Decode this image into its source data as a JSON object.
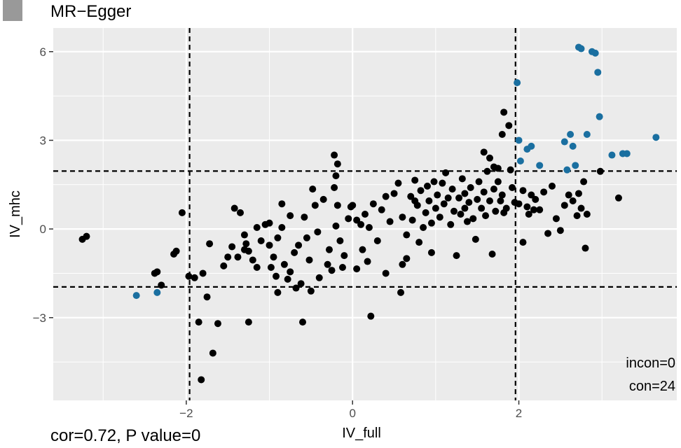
{
  "header": {
    "title": "MR−Egger",
    "legend_key_color": "#999999"
  },
  "footer": {
    "note": "cor=0.72, P value=0"
  },
  "colors": {
    "panel": "#ebebeb",
    "grid": "#ffffff",
    "point_default": "#000000",
    "point_highlight": "#1a6fa0",
    "threshold_line": "#000000"
  },
  "chart_data": {
    "type": "scatter",
    "title": "MR−Egger",
    "xlabel": "IV_full",
    "ylabel": "IV_mhc",
    "xlim": [
      -3.6,
      3.9
    ],
    "ylim": [
      -5.8,
      6.8
    ],
    "x_ticks": [
      {
        "v": -2,
        "label": "−2"
      },
      {
        "v": 0,
        "label": "0"
      },
      {
        "v": 2,
        "label": "2"
      }
    ],
    "y_ticks": [
      {
        "v": -3,
        "label": "−3"
      },
      {
        "v": 0,
        "label": "0"
      },
      {
        "v": 3,
        "label": "3"
      },
      {
        "v": 6,
        "label": "6"
      }
    ],
    "grid": true,
    "thresholds": {
      "x": [
        -1.96,
        1.96
      ],
      "y": [
        -1.96,
        1.96
      ]
    },
    "annotations": {
      "incon": "incon=0",
      "con": "con=24"
    },
    "series": [
      {
        "color": "#000000",
        "points": [
          [
            -3.2,
            -0.25
          ],
          [
            -3.25,
            -0.35
          ],
          [
            -2.35,
            -1.45
          ],
          [
            -2.38,
            -1.5
          ],
          [
            -2.3,
            -1.9
          ],
          [
            -2.15,
            -0.85
          ],
          [
            -2.12,
            -0.75
          ],
          [
            -2.05,
            0.55
          ],
          [
            -1.97,
            -1.6
          ],
          [
            -1.9,
            -1.65
          ],
          [
            -1.8,
            -1.5
          ],
          [
            -1.72,
            -0.5
          ],
          [
            -1.75,
            -2.3
          ],
          [
            -1.68,
            -4.2
          ],
          [
            -1.82,
            -5.1
          ],
          [
            -1.85,
            -3.15
          ],
          [
            -1.62,
            -3.2
          ],
          [
            -1.55,
            -1.25
          ],
          [
            -1.5,
            -0.95
          ],
          [
            -1.45,
            -0.6
          ],
          [
            -1.42,
            0.7
          ],
          [
            -1.35,
            0.55
          ],
          [
            -1.3,
            -0.2
          ],
          [
            -1.28,
            -0.5
          ],
          [
            -1.25,
            -0.75
          ],
          [
            -1.2,
            -1.05
          ],
          [
            -1.15,
            -1.3
          ],
          [
            -1.1,
            -0.4
          ],
          [
            -1.05,
            0.15
          ],
          [
            -1.0,
            -0.55
          ],
          [
            -0.98,
            -1.3
          ],
          [
            -0.95,
            -0.95
          ],
          [
            -0.92,
            -1.6
          ],
          [
            -0.9,
            -0.3
          ],
          [
            -0.85,
            0.05
          ],
          [
            -0.82,
            -1.2
          ],
          [
            -0.78,
            -1.7
          ],
          [
            -0.75,
            -1.45
          ],
          [
            -0.7,
            -0.8
          ],
          [
            -0.68,
            -2.0
          ],
          [
            -0.65,
            -0.55
          ],
          [
            -0.62,
            -1.85
          ],
          [
            -0.58,
            0.4
          ],
          [
            -0.55,
            -0.3
          ],
          [
            -0.52,
            -1.05
          ],
          [
            -0.5,
            -2.1
          ],
          [
            -0.48,
            1.35
          ],
          [
            -0.45,
            0.8
          ],
          [
            -0.42,
            -0.1
          ],
          [
            -0.4,
            -1.65
          ],
          [
            -0.35,
            1.0
          ],
          [
            -0.6,
            -3.15
          ],
          [
            -0.3,
            -1.2
          ],
          [
            -0.28,
            -0.7
          ],
          [
            -0.25,
            -1.4
          ],
          [
            -0.2,
            0.1
          ],
          [
            -0.18,
            0.8
          ],
          [
            -0.15,
            -0.4
          ],
          [
            -0.12,
            -1.3
          ],
          [
            -0.1,
            -0.9
          ],
          [
            -0.05,
            0.35
          ],
          [
            -0.02,
            0.75
          ],
          [
            0.05,
            -1.35
          ],
          [
            -0.18,
            2.2
          ],
          [
            -0.22,
            2.5
          ],
          [
            -0.2,
            1.8
          ],
          [
            -0.22,
            1.4
          ],
          [
            0.0,
            0.8
          ],
          [
            0.05,
            0.3
          ],
          [
            0.1,
            0.15
          ],
          [
            0.12,
            -0.7
          ],
          [
            0.15,
            0.5
          ],
          [
            0.18,
            -1.1
          ],
          [
            0.2,
            0.05
          ],
          [
            0.25,
            0.85
          ],
          [
            0.3,
            -0.4
          ],
          [
            0.35,
            0.65
          ],
          [
            0.22,
            -2.95
          ],
          [
            0.4,
            -1.5
          ],
          [
            0.45,
            0.25
          ],
          [
            0.5,
            1.2
          ],
          [
            0.55,
            1.55
          ],
          [
            0.6,
            0.4
          ],
          [
            0.65,
            -0.2
          ],
          [
            0.7,
            1.1
          ],
          [
            0.72,
            0.3
          ],
          [
            0.75,
            1.65
          ],
          [
            0.78,
            0.8
          ],
          [
            0.8,
            -0.45
          ],
          [
            0.82,
            1.3
          ],
          [
            0.85,
            0.05
          ],
          [
            0.88,
            0.55
          ],
          [
            0.9,
            1.45
          ],
          [
            0.92,
            0.95
          ],
          [
            0.95,
            0.2
          ],
          [
            0.98,
            1.6
          ],
          [
            1.0,
            0.7
          ],
          [
            1.02,
            1.15
          ],
          [
            1.05,
            0.4
          ],
          [
            1.08,
            1.55
          ],
          [
            1.1,
            0.85
          ],
          [
            1.12,
            1.9
          ],
          [
            1.15,
            1.05
          ],
          [
            1.18,
            0.15
          ],
          [
            1.2,
            1.35
          ],
          [
            1.22,
            0.6
          ],
          [
            1.25,
            -0.9
          ],
          [
            1.28,
            1.05
          ],
          [
            1.3,
            0.5
          ],
          [
            1.32,
            1.7
          ],
          [
            1.35,
            1.2
          ],
          [
            1.38,
            0.25
          ],
          [
            1.4,
            0.9
          ],
          [
            1.42,
            1.4
          ],
          [
            1.45,
            0.35
          ],
          [
            1.48,
            -0.35
          ],
          [
            1.5,
            1.0
          ],
          [
            1.52,
            1.6
          ],
          [
            1.55,
            0.7
          ],
          [
            1.58,
            1.25
          ],
          [
            1.6,
            0.45
          ],
          [
            1.62,
            1.95
          ],
          [
            1.65,
            0.95
          ],
          [
            1.68,
            -0.85
          ],
          [
            1.7,
            1.35
          ],
          [
            1.72,
            0.6
          ],
          [
            1.75,
            1.6
          ],
          [
            1.78,
            0.95
          ],
          [
            1.8,
            1.15
          ],
          [
            1.82,
            0.55
          ],
          [
            1.85,
            0.7
          ],
          [
            1.58,
            2.6
          ],
          [
            1.65,
            2.4
          ],
          [
            1.7,
            2.1
          ],
          [
            1.75,
            2.05
          ],
          [
            1.8,
            3.2
          ],
          [
            1.82,
            3.95
          ],
          [
            1.88,
            3.5
          ],
          [
            1.9,
            2.0
          ],
          [
            1.92,
            1.4
          ],
          [
            1.95,
            0.9
          ],
          [
            0.95,
            -0.8
          ],
          [
            0.65,
            -1.0
          ],
          [
            0.6,
            -1.2
          ],
          [
            0.58,
            -2.15
          ],
          [
            -1.25,
            -3.15
          ],
          [
            -0.9,
            -2.15
          ],
          [
            2.0,
            0.85
          ],
          [
            2.05,
            1.3
          ],
          [
            2.05,
            -0.45
          ],
          [
            2.1,
            0.75
          ],
          [
            2.12,
            0.5
          ],
          [
            2.15,
            1.15
          ],
          [
            2.18,
            0.65
          ],
          [
            2.2,
            1.0
          ],
          [
            2.25,
            0.65
          ],
          [
            2.3,
            1.25
          ],
          [
            2.35,
            -0.15
          ],
          [
            2.4,
            1.45
          ],
          [
            2.45,
            0.35
          ],
          [
            2.5,
            -0.05
          ],
          [
            2.55,
            0.8
          ],
          [
            2.6,
            1.15
          ],
          [
            2.65,
            0.95
          ],
          [
            2.7,
            0.45
          ],
          [
            2.72,
            1.2
          ],
          [
            2.75,
            0.7
          ],
          [
            2.78,
            1.6
          ],
          [
            2.8,
            -0.65
          ],
          [
            2.82,
            0.5
          ],
          [
            2.98,
            1.95
          ],
          [
            3.2,
            1.05
          ],
          [
            0.75,
            0.95
          ],
          [
            1.35,
            0.7
          ],
          [
            0.4,
            1.1
          ],
          [
            -0.85,
            0.85
          ],
          [
            -0.75,
            0.45
          ],
          [
            -1.0,
            0.2
          ],
          [
            -1.15,
            0.05
          ],
          [
            -1.3,
            -0.7
          ],
          [
            -1.38,
            -0.95
          ]
        ]
      },
      {
        "color": "#1a6fa0",
        "points": [
          [
            -2.6,
            -2.25
          ],
          [
            -2.35,
            -2.15
          ],
          [
            1.98,
            4.95
          ],
          [
            2.0,
            3.0
          ],
          [
            2.02,
            2.3
          ],
          [
            2.1,
            2.7
          ],
          [
            2.15,
            2.8
          ],
          [
            2.25,
            2.15
          ],
          [
            2.55,
            2.95
          ],
          [
            2.62,
            3.2
          ],
          [
            2.65,
            2.8
          ],
          [
            2.68,
            2.15
          ],
          [
            2.72,
            6.15
          ],
          [
            2.75,
            6.1
          ],
          [
            2.82,
            3.2
          ],
          [
            2.88,
            6.0
          ],
          [
            2.92,
            5.95
          ],
          [
            2.95,
            5.3
          ],
          [
            2.97,
            3.8
          ],
          [
            3.12,
            2.5
          ],
          [
            3.25,
            2.55
          ],
          [
            3.3,
            2.55
          ],
          [
            3.65,
            3.1
          ],
          [
            2.58,
            2.0
          ]
        ]
      }
    ]
  }
}
